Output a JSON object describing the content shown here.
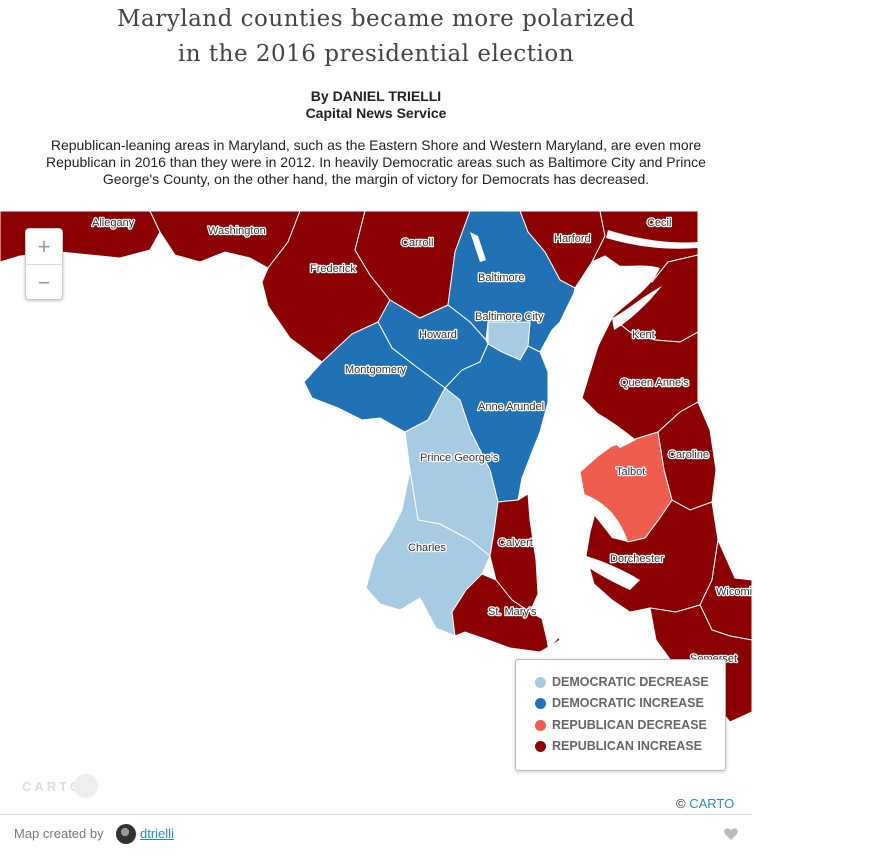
{
  "header": {
    "title_line1": "Maryland counties became more polarized",
    "title_line2": "in the 2016 presidential election",
    "byline_name": "By DANIEL TRIELLI",
    "byline_org": "Capital News Service",
    "description": "Republican-leaning areas in Maryland, such as the Eastern Shore and Western Maryland, are even more Republican in 2016 than they were in 2012. In heavily Democratic areas such as Baltimore City and Prince George's County, on the other hand, the margin of victory for Democrats has decreased."
  },
  "map": {
    "zoom_in": "+",
    "zoom_out": "−",
    "colors": {
      "democratic_decrease": "#a6cbe3",
      "democratic_increase": "#2171b5",
      "republican_decrease": "#ef5d4f",
      "republican_increase": "#8b0000",
      "water": "#ffffff",
      "county_border": "#ffffff"
    },
    "counties": {
      "allegany": {
        "label": "Allegany",
        "category": "republican_increase"
      },
      "washington": {
        "label": "Washington",
        "category": "republican_increase"
      },
      "frederick": {
        "label": "Frederick",
        "category": "republican_increase"
      },
      "carroll": {
        "label": "Carroll",
        "category": "republican_increase"
      },
      "harford": {
        "label": "Harford",
        "category": "republican_increase"
      },
      "cecil": {
        "label": "Cecil",
        "category": "republican_increase"
      },
      "baltimore": {
        "label": "Baltimore",
        "category": "democratic_increase"
      },
      "baltimore_city": {
        "label": "Baltimore City",
        "category": "democratic_decrease"
      },
      "howard": {
        "label": "Howard",
        "category": "democratic_increase"
      },
      "montgomery": {
        "label": "Montgomery",
        "category": "democratic_increase"
      },
      "anne_arundel": {
        "label": "Anne Arundel",
        "category": "democratic_increase"
      },
      "prince_georges": {
        "label": "Prince George's",
        "category": "democratic_decrease"
      },
      "charles": {
        "label": "Charles",
        "category": "democratic_decrease"
      },
      "calvert": {
        "label": "Calvert",
        "category": "republican_increase"
      },
      "st_marys": {
        "label": "St. Mary's",
        "category": "republican_increase"
      },
      "kent": {
        "label": "Kent",
        "category": "republican_increase"
      },
      "queen_annes": {
        "label": "Queen Anne's",
        "category": "republican_increase"
      },
      "talbot": {
        "label": "Talbot",
        "category": "republican_decrease"
      },
      "caroline": {
        "label": "Caroline",
        "category": "republican_increase"
      },
      "dorchester": {
        "label": "Dorchester",
        "category": "republican_increase"
      },
      "wicomico": {
        "label": "Wicomi",
        "category": "republican_increase"
      },
      "somerset": {
        "label": "Somerset",
        "category": "republican_increase"
      }
    }
  },
  "legend": {
    "items": [
      {
        "label": "DEMOCRATIC DECREASE",
        "color": "#a6cbe3"
      },
      {
        "label": "DEMOCRATIC INCREASE",
        "color": "#2171b5"
      },
      {
        "label": "REPUBLICAN DECREASE",
        "color": "#ef5d4f"
      },
      {
        "label": "REPUBLICAN INCREASE",
        "color": "#8b0000"
      }
    ]
  },
  "attribution": {
    "copyright": "©",
    "provider": "CARTO",
    "logo_text": "CARTO"
  },
  "footer": {
    "created_by": "Map created by",
    "username": "dtrielli",
    "avatar_icon": "user-avatar",
    "like_icon": "heart-icon"
  }
}
